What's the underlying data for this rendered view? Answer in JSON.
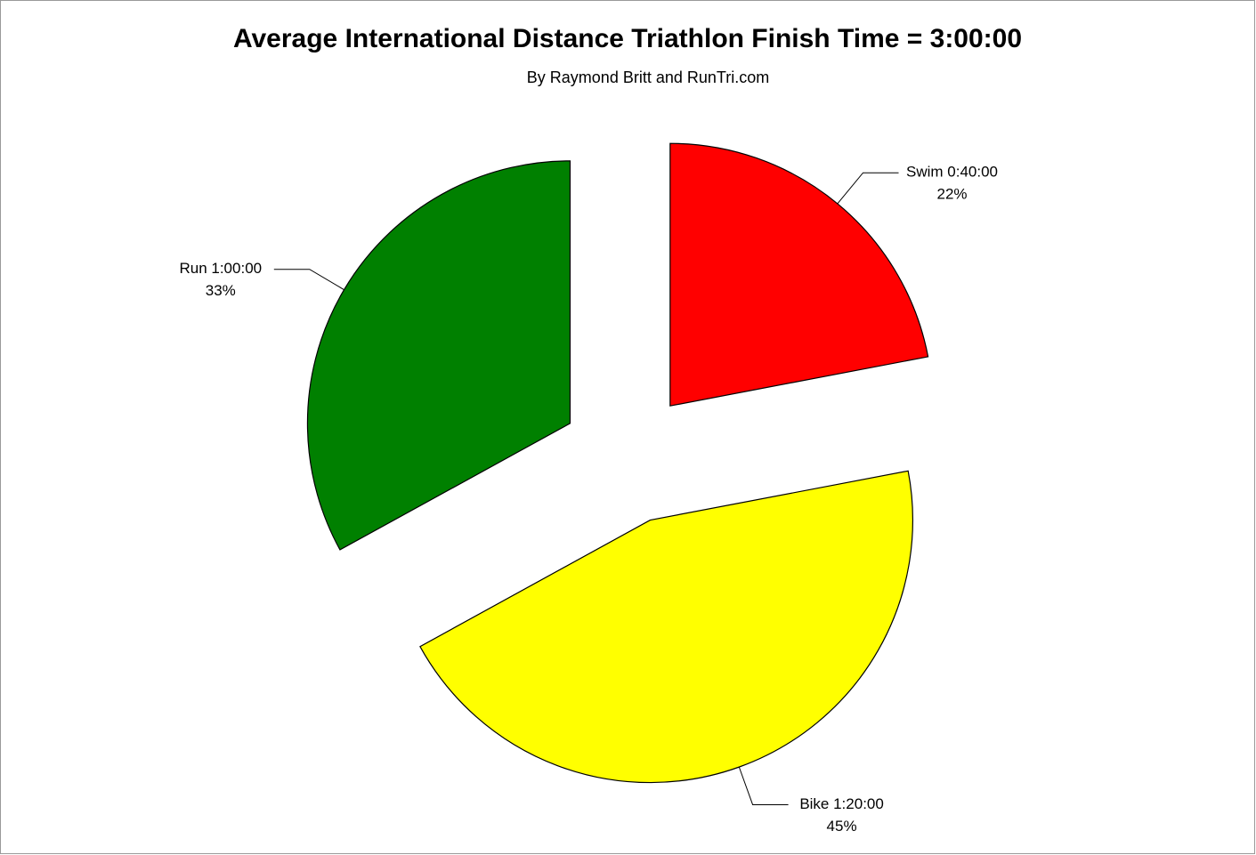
{
  "chart_data": {
    "type": "pie",
    "title": "Average International Distance Triathlon Finish Time = 3:00:00",
    "subtitle": "By Raymond Britt and RunTri.com",
    "categories": [
      "Swim 0:40:00",
      "Bike 1:20:00",
      "Run 1:00:00"
    ],
    "values": [
      22,
      45,
      33
    ],
    "value_labels": [
      "22%",
      "45%",
      "33%"
    ],
    "colors": [
      "#ff0000",
      "#ffff00",
      "#008000"
    ]
  }
}
